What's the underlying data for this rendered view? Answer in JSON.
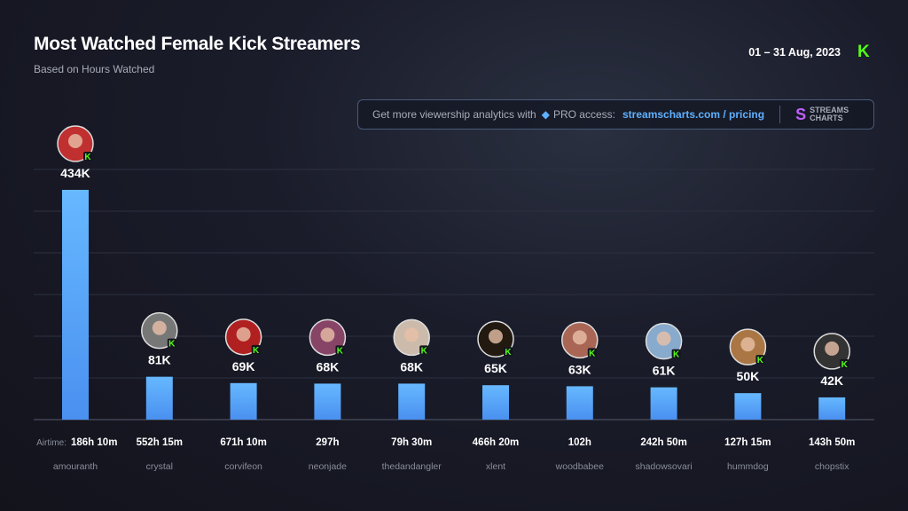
{
  "header": {
    "title": "Most Watched Female Kick Streamers",
    "subtitle": "Based on Hours Watched",
    "date_range": "01 – 31 Aug, 2023",
    "platform_logo": "K"
  },
  "promo": {
    "text": "Get more viewership analytics with",
    "gem_icon": "diamond-icon",
    "pro": "PRO access:",
    "link": "streamscharts.com / pricing",
    "logo_line1": "STREAMS",
    "logo_line2": "CHARTS"
  },
  "colors": {
    "bar_top": "#66b8ff",
    "bar_bottom": "#4a90f0",
    "kick_green": "#53fc18",
    "link": "#5fb0ff"
  },
  "chart_data": {
    "type": "bar",
    "categories": [
      "amouranth",
      "crystal",
      "corvifeon",
      "neonjade",
      "thedandangler",
      "xlent",
      "woodbabee",
      "shadowsovari",
      "hummdog",
      "chopstix"
    ],
    "values": [
      434,
      81,
      69,
      68,
      68,
      65,
      63,
      61,
      50,
      42
    ],
    "data_labels": [
      "434K",
      "81K",
      "69K",
      "68K",
      "68K",
      "65K",
      "63K",
      "61K",
      "50K",
      "42K"
    ],
    "airtime_label": "Airtime:",
    "airtime": [
      "186h 10m",
      "552h 15m",
      "671h 10m",
      "297h",
      "79h 30m",
      "466h 20m",
      "102h",
      "242h 50m",
      "127h 15m",
      "143h 50m"
    ],
    "unit": "K hours watched",
    "grid": true,
    "ylim": [
      0,
      480
    ]
  }
}
